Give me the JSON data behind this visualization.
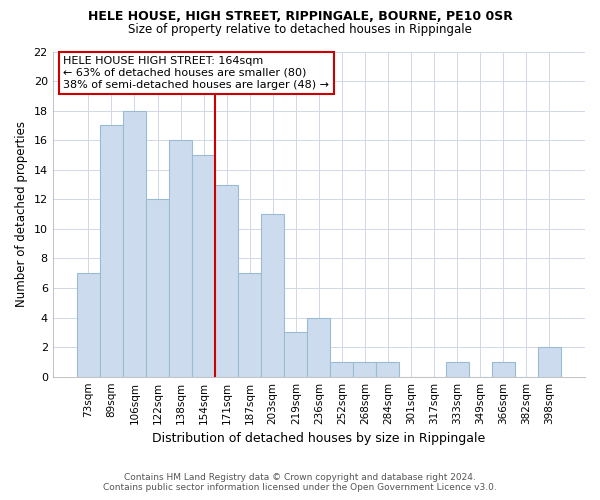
{
  "title": "HELE HOUSE, HIGH STREET, RIPPINGALE, BOURNE, PE10 0SR",
  "subtitle": "Size of property relative to detached houses in Rippingale",
  "xlabel": "Distribution of detached houses by size in Rippingale",
  "ylabel": "Number of detached properties",
  "categories": [
    "73sqm",
    "89sqm",
    "106sqm",
    "122sqm",
    "138sqm",
    "154sqm",
    "171sqm",
    "187sqm",
    "203sqm",
    "219sqm",
    "236sqm",
    "252sqm",
    "268sqm",
    "284sqm",
    "301sqm",
    "317sqm",
    "333sqm",
    "349sqm",
    "366sqm",
    "382sqm",
    "398sqm"
  ],
  "values": [
    7,
    17,
    18,
    12,
    16,
    15,
    13,
    7,
    11,
    3,
    4,
    1,
    1,
    1,
    0,
    0,
    1,
    0,
    1,
    0,
    2
  ],
  "bar_color": "#ccdcee",
  "bar_edge_color": "#9abbd4",
  "reference_line_x": 6,
  "reference_label": "HELE HOUSE HIGH STREET: 164sqm",
  "annotation_line1": "← 63% of detached houses are smaller (80)",
  "annotation_line2": "38% of semi-detached houses are larger (48) →",
  "annotation_box_color": "#ffffff",
  "annotation_box_edge_color": "#cc0000",
  "vline_color": "#cc0000",
  "ylim": [
    0,
    22
  ],
  "yticks": [
    0,
    2,
    4,
    6,
    8,
    10,
    12,
    14,
    16,
    18,
    20,
    22
  ],
  "footer_line1": "Contains HM Land Registry data © Crown copyright and database right 2024.",
  "footer_line2": "Contains public sector information licensed under the Open Government Licence v3.0.",
  "fig_bg_color": "#ffffff",
  "plot_bg_color": "#ffffff",
  "grid_color": "#d0d8e8"
}
